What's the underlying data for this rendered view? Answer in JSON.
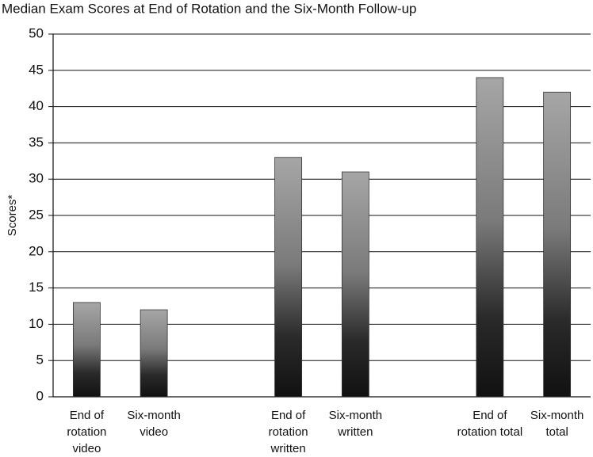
{
  "chart_data": {
    "type": "bar",
    "title": "Median Exam Scores at End of Rotation and the Six-Month Follow-up",
    "y_label": "Scores*",
    "categories": [
      "End of rotation video",
      "Six-month video",
      null,
      "End of rotation written",
      "Six-month written",
      null,
      "End of rotation total",
      "Six-month total"
    ],
    "values": [
      13,
      12,
      null,
      33,
      31,
      null,
      44,
      42
    ],
    "ylim": [
      0,
      50
    ],
    "yticks": [
      0,
      5,
      10,
      15,
      20,
      25,
      30,
      35,
      40,
      45,
      50
    ],
    "grid": true
  }
}
